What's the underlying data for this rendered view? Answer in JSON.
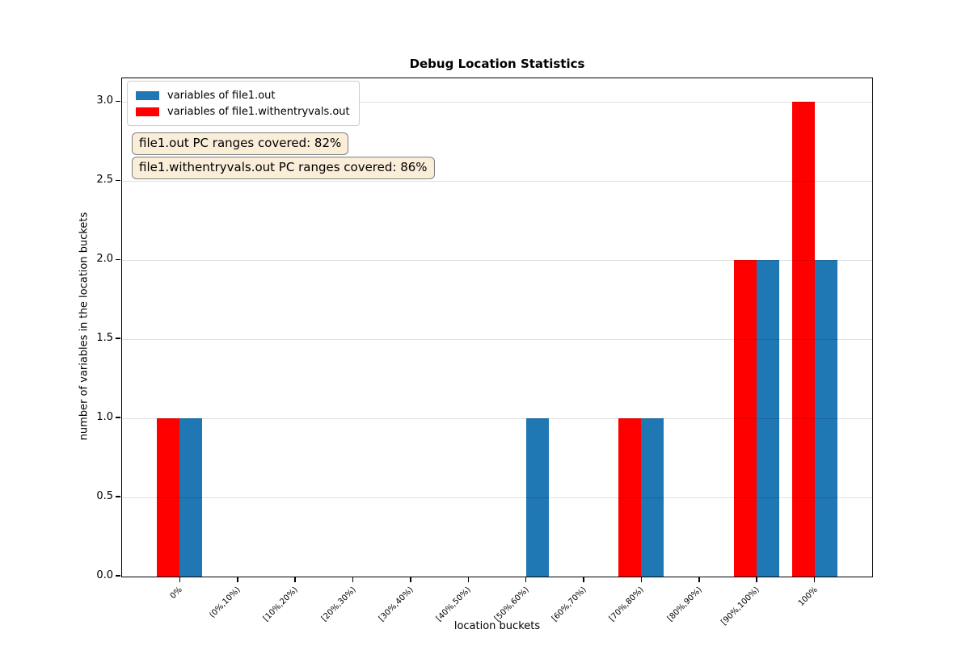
{
  "chart_data": {
    "type": "bar",
    "title": "Debug Location Statistics",
    "xlabel": "location buckets",
    "ylabel": "number of variables in the location buckets",
    "categories": [
      "0%",
      "(0%,10%)",
      "[10%,20%)",
      "[20%,30%)",
      "[30%,40%)",
      "[40%,50%)",
      "[50%,60%)",
      "[60%,70%)",
      "[70%,80%)",
      "[80%,90%)",
      "[90%,100%)",
      "100%"
    ],
    "series": [
      {
        "name": "variables of file1.out",
        "color": "#1f77b4",
        "side": "right",
        "values": [
          1,
          0,
          0,
          0,
          0,
          0,
          1,
          0,
          1,
          0,
          2,
          2
        ]
      },
      {
        "name": "variables of file1.withentryvals.out",
        "color": "#ff0000",
        "side": "left",
        "values": [
          1,
          0,
          0,
          0,
          0,
          0,
          0,
          0,
          1,
          0,
          2,
          3
        ]
      }
    ],
    "ylim": [
      0,
      3.15
    ],
    "yticks": [
      0,
      0.5,
      1,
      1.5,
      2,
      2.5,
      3
    ],
    "ytick_labels": [
      "0.0",
      "0.5",
      "1.0",
      "1.5",
      "2.0",
      "2.5",
      "3.0"
    ],
    "grid": "horizontal",
    "legend_position": "upper left",
    "annotations": [
      {
        "text": "file1.out PC ranges covered: 82%"
      },
      {
        "text": "file1.withentryvals.out PC ranges covered: 86%"
      }
    ],
    "colors": {
      "annotation_bg": "#faeed9",
      "annotation_border": "#7f7f7f",
      "grid": "#dedede",
      "axis": "#000000",
      "legend_border": "#cccccc",
      "background": "#ffffff"
    }
  }
}
